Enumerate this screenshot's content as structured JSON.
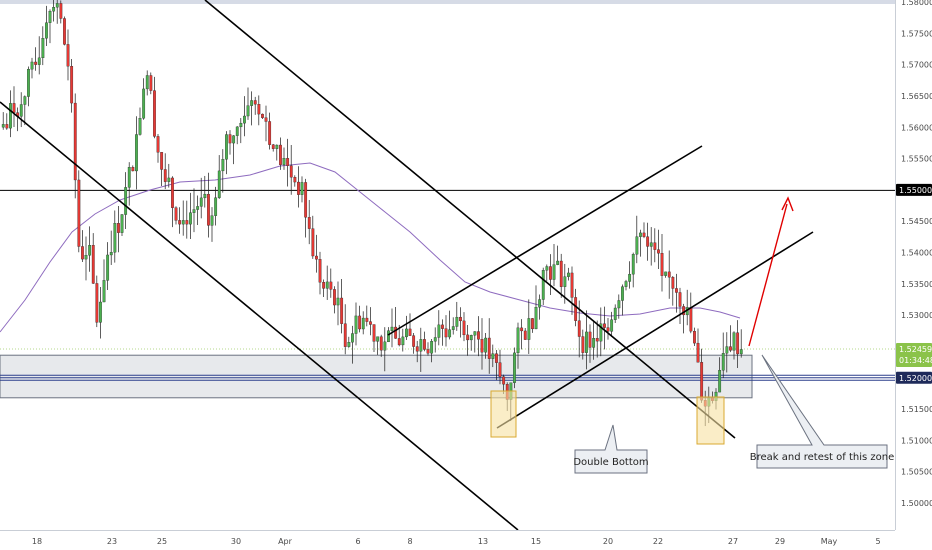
{
  "chart_data": {
    "type": "candlestick",
    "ylim": [
      1.495,
      1.581
    ],
    "date_ticks": [
      "18",
      "23",
      "25",
      "30",
      "Apr",
      "6",
      "8",
      "13",
      "15",
      "20",
      "22",
      "27",
      "29",
      "May",
      "5"
    ],
    "price_ticks": [
      "1.58000",
      "1.57500",
      "1.57000",
      "1.56500",
      "1.56000",
      "1.55500",
      "1.55000",
      "1.54500",
      "1.54000",
      "1.53500",
      "1.53000",
      "1.52500",
      "1.52000",
      "1.51500",
      "1.51000",
      "1.50500",
      "1.50000"
    ],
    "price_tick_values": [
      1.58,
      1.575,
      1.57,
      1.565,
      1.56,
      1.555,
      1.55,
      1.545,
      1.54,
      1.535,
      1.53,
      1.525,
      1.52,
      1.515,
      1.51,
      1.505,
      1.5
    ],
    "current_price": {
      "value": "1.52459",
      "countdown": "01:34:48",
      "color": "#8bc34a"
    },
    "horizontal_levels": [
      {
        "value": 1.55,
        "label": "1.55000",
        "color": "#000000"
      },
      {
        "value": 1.52,
        "label": "1.52000",
        "color": "#1e3a8a"
      }
    ],
    "support_zone": {
      "top": 1.5236,
      "bottom": 1.5168
    },
    "colors": {
      "bull": "#4caf50",
      "bear": "#e53935",
      "ma": "#8e6bbf",
      "arrow": "#e00000",
      "box": "#f5d97a"
    },
    "annotations": [
      "Double Bottom",
      "Break and retest of this zone"
    ]
  }
}
